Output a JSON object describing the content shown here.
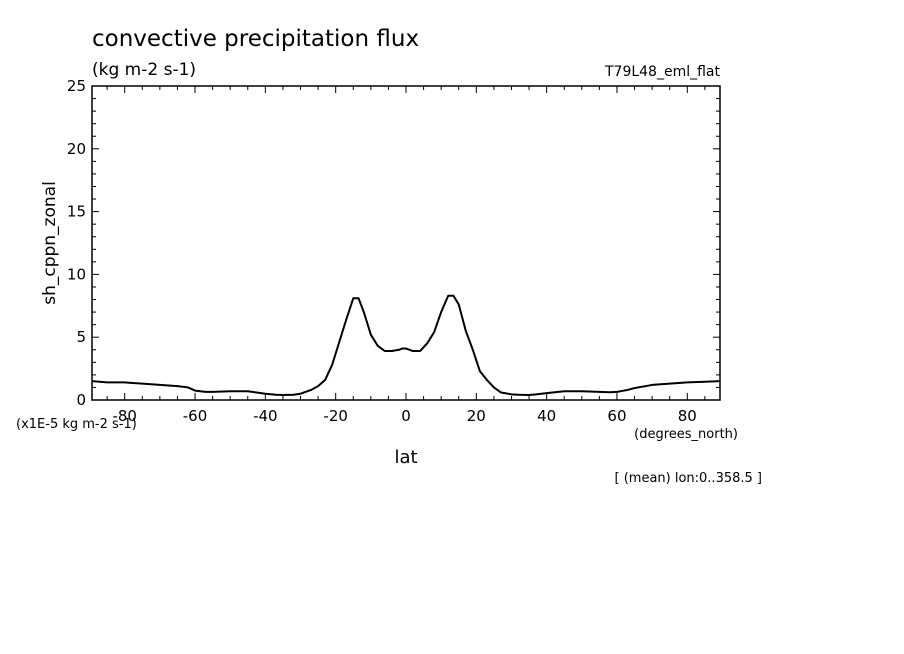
{
  "chart_data": {
    "type": "line",
    "title": "convective precipitation flux",
    "units": "(kg m-2 s-1)",
    "experiment": "T79L48_eml_flat",
    "xlabel": "lat",
    "xunits": "(degrees_north)",
    "ylabel": "sh_cppn_zonal",
    "yscale_note": "(x1E-5 kg m-2 s-1)",
    "footnote": "[ (mean) lon:0..358.5 ]",
    "xlim": [
      -89.3,
      89.3
    ],
    "ylim": [
      0,
      25
    ],
    "xticks": [
      -80,
      -60,
      -40,
      -20,
      0,
      20,
      40,
      60,
      80
    ],
    "yticks": [
      0,
      5,
      10,
      15,
      20,
      25
    ],
    "line_color": "#000000",
    "series": [
      {
        "name": "sh_cppn_zonal",
        "x": [
          -89.3,
          -85,
          -80,
          -75,
          -70,
          -65,
          -62,
          -60,
          -57,
          -55,
          -50,
          -45,
          -40,
          -37,
          -35,
          -32,
          -30,
          -27,
          -25,
          -23,
          -21,
          -19,
          -17,
          -15,
          -13.5,
          -12,
          -10,
          -8,
          -6,
          -4,
          -2,
          -1,
          0,
          1,
          2,
          4,
          6,
          8,
          10,
          12,
          13.5,
          15,
          17,
          19,
          21,
          23,
          25,
          27,
          30,
          32,
          35,
          37,
          40,
          45,
          50,
          55,
          58,
          60,
          63,
          65,
          70,
          75,
          80,
          85,
          89.3
        ],
        "values": [
          1.5,
          1.4,
          1.4,
          1.3,
          1.2,
          1.1,
          1.0,
          0.75,
          0.65,
          0.65,
          0.7,
          0.7,
          0.5,
          0.42,
          0.4,
          0.42,
          0.5,
          0.8,
          1.1,
          1.6,
          2.8,
          4.6,
          6.4,
          8.1,
          8.1,
          7.0,
          5.2,
          4.3,
          3.9,
          3.9,
          4.0,
          4.1,
          4.1,
          4.0,
          3.9,
          3.9,
          4.5,
          5.4,
          7.0,
          8.3,
          8.3,
          7.6,
          5.5,
          4.0,
          2.3,
          1.6,
          1.0,
          0.6,
          0.45,
          0.42,
          0.4,
          0.45,
          0.55,
          0.7,
          0.7,
          0.65,
          0.62,
          0.65,
          0.8,
          0.95,
          1.2,
          1.3,
          1.4,
          1.45,
          1.5
        ]
      }
    ]
  }
}
